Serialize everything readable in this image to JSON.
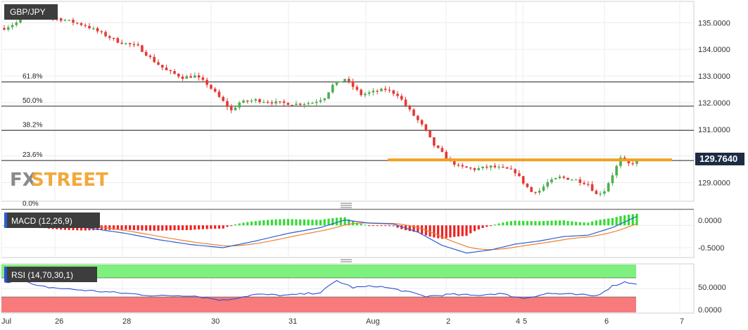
{
  "symbol": "GBP/JPY",
  "watermark": {
    "fx": "FX",
    "street": "STREET"
  },
  "price_panel": {
    "last_price": "129.7640",
    "y_ticks": [
      "129.0000",
      "130.0000",
      "131.0000",
      "132.0000",
      "133.0000",
      "134.0000",
      "135.0000"
    ],
    "ylim": [
      128.3,
      135.8
    ],
    "fib_levels": [
      {
        "label": "61.8%",
        "price": 132.78
      },
      {
        "label": "50.0%",
        "price": 131.87
      },
      {
        "label": "38.2%",
        "price": 130.96
      },
      {
        "label": "23.6%",
        "price": 129.83
      },
      {
        "label": "0.0%",
        "price": 128.0
      }
    ],
    "resistance_line": 129.85
  },
  "macd_panel": {
    "label": "MACD (12,26,9)",
    "y_ticks": [
      "0.0000",
      "-0.5000"
    ]
  },
  "rsi_panel": {
    "label": "RSI (14,70,30,1)",
    "y_ticks": [
      "50.0000",
      "0.0000"
    ]
  },
  "x_axis": {
    "labels": [
      "Jul",
      "26",
      "28",
      "30",
      "31",
      "Aug",
      "2",
      "4",
      "5",
      "6",
      "7"
    ]
  },
  "colors": {
    "up": "#4caf50",
    "down": "#e53935",
    "orange": "#f0a020",
    "macd_line": "#2c5fd3",
    "signal_line": "#f08030",
    "hist_up": "#33dd33",
    "hist_down": "#ee2222",
    "rsi_line": "#2c4fd3",
    "overbought": "#7ef07e",
    "oversold": "#f77b7b"
  },
  "chart_data": {
    "type": "candlestick",
    "symbol": "GBP/JPY",
    "price_keypoints": [
      [
        0,
        134.8
      ],
      [
        3,
        135.0
      ],
      [
        5,
        135.45
      ],
      [
        8,
        135.3
      ],
      [
        15,
        135.1
      ],
      [
        20,
        134.9
      ],
      [
        28,
        134.3
      ],
      [
        33,
        134.1
      ],
      [
        37,
        133.55
      ],
      [
        40,
        133.2
      ],
      [
        44,
        132.95
      ],
      [
        47,
        133.0
      ],
      [
        50,
        132.7
      ],
      [
        53,
        132.2
      ],
      [
        56,
        131.7
      ],
      [
        58,
        132.0
      ],
      [
        62,
        132.1
      ],
      [
        67,
        132.0
      ],
      [
        72,
        131.95
      ],
      [
        76,
        132.0
      ],
      [
        79,
        132.2
      ],
      [
        81,
        132.65
      ],
      [
        84,
        132.9
      ],
      [
        86,
        132.6
      ],
      [
        88,
        132.3
      ],
      [
        91,
        132.4
      ],
      [
        94,
        132.5
      ],
      [
        97,
        132.3
      ],
      [
        100,
        131.7
      ],
      [
        103,
        131.15
      ],
      [
        106,
        130.4
      ],
      [
        109,
        129.95
      ],
      [
        112,
        129.6
      ],
      [
        116,
        129.5
      ],
      [
        120,
        129.6
      ],
      [
        124,
        129.5
      ],
      [
        126,
        129.4
      ],
      [
        128,
        129.0
      ],
      [
        130,
        128.65
      ],
      [
        132,
        128.7
      ],
      [
        134,
        129.0
      ],
      [
        137,
        129.2
      ],
      [
        141,
        129.1
      ],
      [
        144,
        128.95
      ],
      [
        146,
        128.55
      ],
      [
        148,
        128.7
      ],
      [
        150,
        129.3
      ],
      [
        152,
        129.9
      ],
      [
        154,
        129.7
      ],
      [
        156,
        129.8
      ]
    ],
    "macd_keypoints": [
      [
        0,
        0.22
      ],
      [
        10,
        0.12
      ],
      [
        20,
        -0.05
      ],
      [
        30,
        -0.18
      ],
      [
        38,
        -0.32
      ],
      [
        46,
        -0.43
      ],
      [
        54,
        -0.5
      ],
      [
        62,
        -0.35
      ],
      [
        70,
        -0.18
      ],
      [
        78,
        -0.05
      ],
      [
        84,
        0.12
      ],
      [
        90,
        0.05
      ],
      [
        96,
        0.03
      ],
      [
        102,
        -0.15
      ],
      [
        108,
        -0.45
      ],
      [
        114,
        -0.62
      ],
      [
        120,
        -0.55
      ],
      [
        126,
        -0.42
      ],
      [
        132,
        -0.35
      ],
      [
        138,
        -0.25
      ],
      [
        144,
        -0.22
      ],
      [
        150,
        -0.05
      ],
      [
        156,
        0.2
      ]
    ],
    "rsi_keypoints": [
      [
        0,
        62
      ],
      [
        4,
        68
      ],
      [
        8,
        55
      ],
      [
        14,
        50
      ],
      [
        22,
        45
      ],
      [
        30,
        40
      ],
      [
        38,
        35
      ],
      [
        46,
        36
      ],
      [
        54,
        26
      ],
      [
        62,
        38
      ],
      [
        70,
        36
      ],
      [
        78,
        42
      ],
      [
        82,
        66
      ],
      [
        86,
        52
      ],
      [
        92,
        55
      ],
      [
        98,
        46
      ],
      [
        104,
        34
      ],
      [
        110,
        38
      ],
      [
        116,
        36
      ],
      [
        122,
        40
      ],
      [
        128,
        30
      ],
      [
        134,
        40
      ],
      [
        140,
        38
      ],
      [
        146,
        35
      ],
      [
        150,
        55
      ],
      [
        153,
        63
      ],
      [
        156,
        60
      ]
    ],
    "rsi_levels": [
      70,
      30
    ]
  }
}
